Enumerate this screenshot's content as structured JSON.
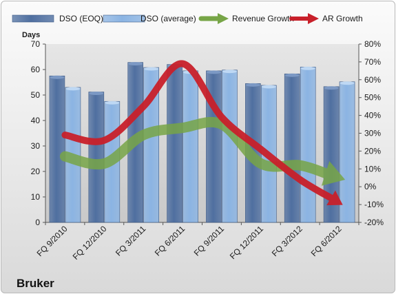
{
  "chart_data": {
    "type": "bar",
    "company": "Bruker",
    "ylabel": "Days",
    "categories": [
      "FQ 9/2010",
      "FQ 12/2010",
      "FQ 3/2011",
      "FQ 6/2011",
      "FQ 9/2011",
      "FQ 12/2011",
      "FQ 3/2012",
      "FQ 6/2012"
    ],
    "ylim": [
      0,
      70
    ],
    "yticks": [
      0,
      10,
      20,
      30,
      40,
      50,
      60,
      70
    ],
    "y2lim": [
      -0.2,
      0.8
    ],
    "y2ticks": [
      "-20%",
      "-10%",
      "0%",
      "10%",
      "20%",
      "30%",
      "40%",
      "50%",
      "60%",
      "70%",
      "80%"
    ],
    "series": [
      {
        "name": "DSO (EOQ)",
        "type": "bar",
        "axis": "left",
        "color": "#4f6fa0",
        "values": [
          57.5,
          51.2,
          62.8,
          62.0,
          59.5,
          54.5,
          58.3,
          53.3
        ]
      },
      {
        "name": "DSO (average)",
        "type": "bar",
        "axis": "left",
        "color": "#8bb4e3",
        "values": [
          53.0,
          47.5,
          60.8,
          59.5,
          59.8,
          53.8,
          61.0,
          55.2
        ]
      },
      {
        "name": "Revenue Growth",
        "type": "arrow-line",
        "axis": "right",
        "color": "#77a547",
        "values": [
          0.17,
          0.13,
          0.29,
          0.33,
          0.35,
          0.13,
          0.12,
          0.05
        ]
      },
      {
        "name": "AR Growth",
        "type": "arrow-line",
        "axis": "right",
        "color": "#c8202a",
        "values": [
          0.29,
          0.26,
          0.45,
          0.69,
          0.39,
          0.21,
          0.04,
          -0.09
        ]
      }
    ],
    "legend": "top",
    "grid": false
  }
}
